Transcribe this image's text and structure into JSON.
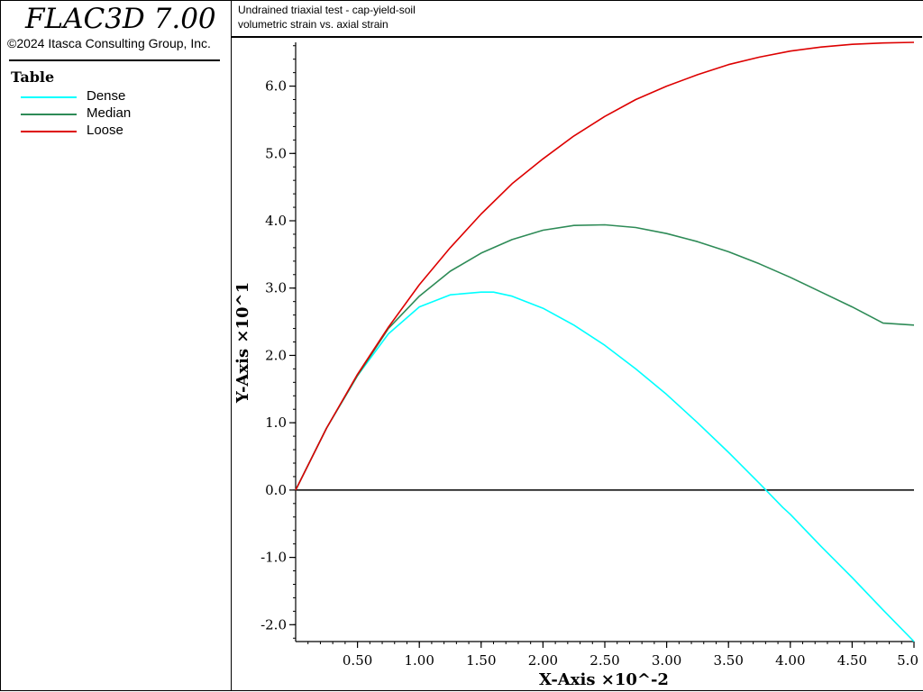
{
  "app": {
    "title": "FLAC3D 7.00",
    "copyright": "©2024 Itasca Consulting Group, Inc."
  },
  "legend": {
    "title": "Table",
    "items": [
      {
        "label": "Dense",
        "color": "#00ffff"
      },
      {
        "label": "Median",
        "color": "#2e8b57"
      },
      {
        "label": "Loose",
        "color": "#dd0000"
      }
    ]
  },
  "header": {
    "line1": "Undrained triaxial test - cap-yield-soil",
    "line2": "volumetric strain vs. axial strain"
  },
  "chart_data": {
    "type": "line",
    "xlabel": "X-Axis ×10^-2",
    "ylabel": "Y-Axis ×10^1",
    "xlim": [
      0.0,
      5.0
    ],
    "ylim": [
      -2.25,
      6.65
    ],
    "x_ticks": [
      "0.50",
      "1.00",
      "1.50",
      "2.00",
      "2.50",
      "3.00",
      "3.50",
      "4.00",
      "4.50",
      "5.0"
    ],
    "x_tick_values": [
      0.5,
      1.0,
      1.5,
      2.0,
      2.5,
      3.0,
      3.5,
      4.0,
      4.5,
      5.0
    ],
    "y_ticks": [
      "-2.0",
      "-1.0",
      "0.0",
      "1.0",
      "2.0",
      "3.0",
      "4.0",
      "5.0",
      "6.0"
    ],
    "y_tick_values": [
      -2.0,
      -1.0,
      0.0,
      1.0,
      2.0,
      3.0,
      4.0,
      5.0,
      6.0
    ],
    "zero_line": 0.0,
    "series": [
      {
        "name": "Dense",
        "color": "#00ffff",
        "x": [
          0.0,
          0.25,
          0.5,
          0.75,
          1.0,
          1.25,
          1.5,
          1.6,
          1.75,
          2.0,
          2.25,
          2.5,
          2.75,
          3.0,
          3.25,
          3.5,
          3.75,
          3.94,
          4.0,
          4.25,
          4.5,
          4.75,
          5.0
        ],
        "y": [
          0.0,
          0.92,
          1.7,
          2.32,
          2.72,
          2.9,
          2.94,
          2.94,
          2.88,
          2.7,
          2.45,
          2.15,
          1.8,
          1.42,
          1.0,
          0.56,
          0.1,
          -0.26,
          -0.36,
          -0.84,
          -1.3,
          -1.78,
          -2.25
        ]
      },
      {
        "name": "Median",
        "color": "#2e8b57",
        "x": [
          0.0,
          0.25,
          0.5,
          0.75,
          1.0,
          1.25,
          1.5,
          1.75,
          2.0,
          2.25,
          2.5,
          2.75,
          3.0,
          3.25,
          3.5,
          3.75,
          4.0,
          4.25,
          4.5,
          4.75,
          5.0
        ],
        "y": [
          0.0,
          0.92,
          1.7,
          2.4,
          2.88,
          3.25,
          3.52,
          3.72,
          3.86,
          3.93,
          3.94,
          3.9,
          3.81,
          3.69,
          3.54,
          3.36,
          3.16,
          2.94,
          2.72,
          2.48,
          2.45
        ]
      },
      {
        "name": "Loose",
        "color": "#dd0000",
        "x": [
          0.0,
          0.25,
          0.5,
          0.75,
          1.0,
          1.25,
          1.5,
          1.75,
          2.0,
          2.25,
          2.5,
          2.75,
          3.0,
          3.25,
          3.5,
          3.75,
          4.0,
          4.25,
          4.5,
          4.75,
          5.0
        ],
        "y": [
          0.0,
          0.92,
          1.72,
          2.42,
          3.05,
          3.6,
          4.1,
          4.55,
          4.92,
          5.26,
          5.55,
          5.8,
          6.0,
          6.17,
          6.32,
          6.43,
          6.52,
          6.58,
          6.62,
          6.64,
          6.65
        ]
      }
    ]
  }
}
